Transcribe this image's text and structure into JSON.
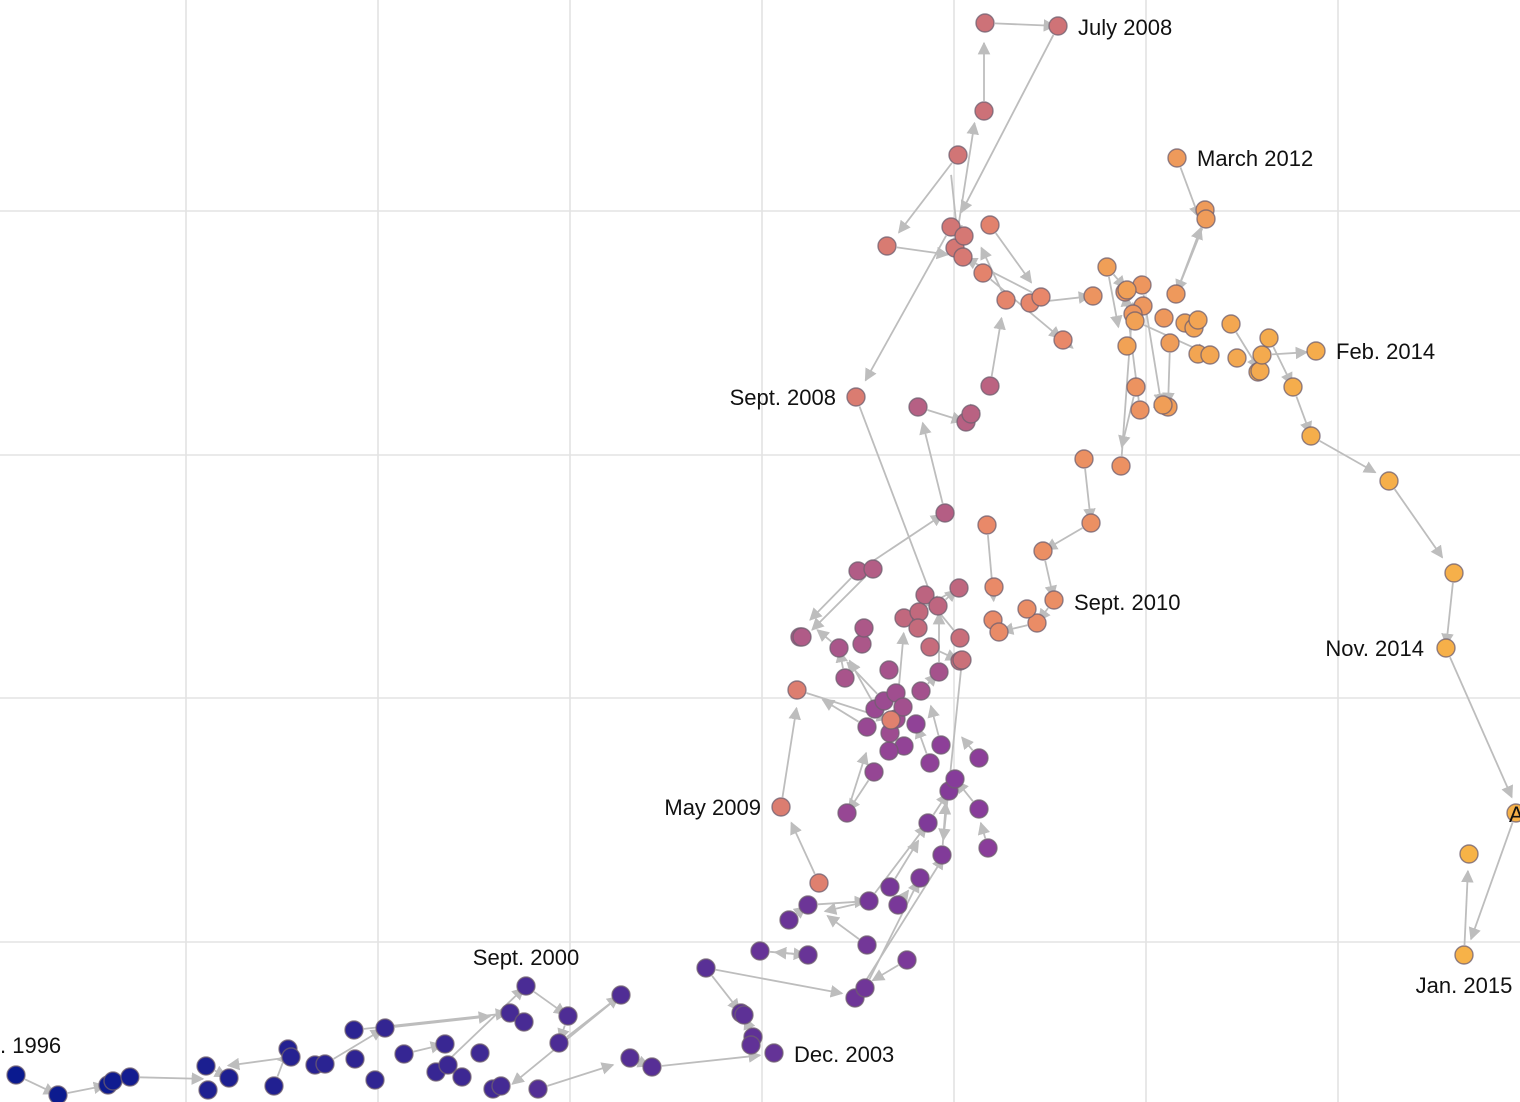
{
  "chart_data": {
    "type": "scatter",
    "title": "",
    "xlabel": "",
    "ylabel": "",
    "grid": true,
    "connected": "arrows in time order",
    "color_scale": {
      "start": "#0a1a8f",
      "middle": "#8a3d9a",
      "late": "#e8876a",
      "end": "#f7b347"
    },
    "annotations": [
      {
        "text": "July 2008"
      },
      {
        "text": "March 2012"
      },
      {
        "text": "Feb. 2014"
      },
      {
        "text": "Sept. 2008"
      },
      {
        "text": "Sept. 2010"
      },
      {
        "text": "Nov. 2014"
      },
      {
        "text": "May 2009"
      },
      {
        "text": "Sept. 2000"
      },
      {
        "text": "Jan. 2015"
      },
      {
        "text": ". 1996"
      },
      {
        "text": "Dec. 2003"
      },
      {
        "text": "A"
      }
    ],
    "points": [
      [
        16,
        1075,
        0.0
      ],
      [
        58,
        1095,
        0.01
      ],
      [
        108,
        1085,
        0.02
      ],
      [
        113,
        1081,
        0.03
      ],
      [
        130,
        1077,
        0.04
      ],
      [
        206,
        1066,
        0.08
      ],
      [
        229,
        1078,
        0.09
      ],
      [
        208,
        1090,
        0.1
      ],
      [
        274,
        1086,
        0.11
      ],
      [
        288,
        1049,
        0.12
      ],
      [
        291,
        1057,
        0.13
      ],
      [
        315,
        1065,
        0.14
      ],
      [
        325,
        1064,
        0.15
      ],
      [
        354,
        1030,
        0.16
      ],
      [
        355,
        1059,
        0.17
      ],
      [
        375,
        1080,
        0.18
      ],
      [
        385,
        1028,
        0.19
      ],
      [
        404,
        1054,
        0.2
      ],
      [
        436,
        1072,
        0.21
      ],
      [
        445,
        1044,
        0.22
      ],
      [
        448,
        1065,
        0.23
      ],
      [
        462,
        1077,
        0.24
      ],
      [
        480,
        1053,
        0.25
      ],
      [
        493,
        1089,
        0.26
      ],
      [
        501,
        1086,
        0.27
      ],
      [
        510,
        1013,
        0.28
      ],
      [
        524,
        1022,
        0.29
      ],
      [
        526,
        986,
        0.3
      ],
      [
        559,
        1043,
        0.31
      ],
      [
        568,
        1016,
        0.32
      ],
      [
        621,
        995,
        0.33
      ],
      [
        538,
        1089,
        0.34
      ],
      [
        630,
        1058,
        0.35
      ],
      [
        652,
        1067,
        0.36
      ],
      [
        706,
        968,
        0.37
      ],
      [
        741,
        1013,
        0.38
      ],
      [
        744,
        1015,
        0.39
      ],
      [
        753,
        1037,
        0.4
      ],
      [
        751,
        1045,
        0.41
      ],
      [
        774,
        1053,
        0.42
      ],
      [
        760,
        951,
        0.43
      ],
      [
        808,
        955,
        0.44
      ],
      [
        789,
        920,
        0.45
      ],
      [
        808,
        905,
        0.46
      ],
      [
        855,
        998,
        0.47
      ],
      [
        865,
        988,
        0.48
      ],
      [
        867,
        945,
        0.49
      ],
      [
        869,
        901,
        0.5
      ],
      [
        890,
        887,
        0.51
      ],
      [
        898,
        905,
        0.52
      ],
      [
        907,
        960,
        0.53
      ],
      [
        920,
        878,
        0.54
      ],
      [
        928,
        823,
        0.55
      ],
      [
        942,
        855,
        0.56
      ],
      [
        949,
        791,
        0.57
      ],
      [
        955,
        779,
        0.58
      ],
      [
        979,
        809,
        0.59
      ],
      [
        988,
        848,
        0.6
      ],
      [
        979,
        758,
        0.61
      ],
      [
        941,
        745,
        0.62
      ],
      [
        930,
        763,
        0.63
      ],
      [
        916,
        724,
        0.64
      ],
      [
        904,
        746,
        0.65
      ],
      [
        889,
        751,
        0.66
      ],
      [
        874,
        772,
        0.67
      ],
      [
        847,
        813,
        0.68
      ],
      [
        867,
        727,
        0.69
      ],
      [
        875,
        709,
        0.7
      ],
      [
        884,
        701,
        0.71
      ],
      [
        890,
        733,
        0.72
      ],
      [
        896,
        719,
        0.73
      ],
      [
        896,
        693,
        0.74
      ],
      [
        903,
        707,
        0.75
      ],
      [
        921,
        691,
        0.76
      ],
      [
        939,
        672,
        0.77
      ],
      [
        889,
        670,
        0.78
      ],
      [
        845,
        678,
        0.79
      ],
      [
        839,
        648,
        0.8
      ],
      [
        862,
        644,
        0.81
      ],
      [
        864,
        628,
        0.82
      ],
      [
        800,
        637,
        0.83
      ],
      [
        802,
        637,
        0.84
      ],
      [
        858,
        571,
        0.85
      ],
      [
        873,
        569,
        0.86
      ],
      [
        945,
        513,
        0.87
      ],
      [
        918,
        407,
        0.88
      ],
      [
        966,
        422,
        0.89
      ],
      [
        971,
        414,
        0.9
      ],
      [
        990,
        386,
        0.91
      ],
      [
        925,
        595,
        0.92
      ],
      [
        938,
        606,
        0.93
      ],
      [
        959,
        588,
        0.94
      ],
      [
        904,
        618,
        0.95
      ],
      [
        919,
        612,
        0.96
      ],
      [
        918,
        628,
        0.97
      ],
      [
        930,
        647,
        0.98
      ],
      [
        960,
        661,
        0.99
      ],
      [
        960,
        638,
        1.0
      ],
      [
        962,
        660,
        1.01
      ],
      [
        984,
        111,
        1.02
      ],
      [
        985,
        23,
        1.03
      ],
      [
        1058,
        26,
        1.04
      ],
      [
        958,
        155,
        1.05
      ],
      [
        951,
        227,
        1.06
      ],
      [
        955,
        248,
        1.07
      ],
      [
        964,
        236,
        1.08
      ],
      [
        963,
        257,
        1.09
      ],
      [
        887,
        246,
        1.1
      ],
      [
        856,
        397,
        1.11
      ],
      [
        781,
        807,
        1.12
      ],
      [
        797,
        690,
        1.13
      ],
      [
        819,
        883,
        1.14
      ],
      [
        891,
        720,
        1.15
      ],
      [
        990,
        225,
        1.16
      ],
      [
        983,
        273,
        1.17
      ],
      [
        1006,
        300,
        1.18
      ],
      [
        1030,
        303,
        1.19
      ],
      [
        1041,
        297,
        1.2
      ],
      [
        1063,
        340,
        1.21
      ],
      [
        987,
        525,
        1.22
      ],
      [
        994,
        587,
        1.23
      ],
      [
        993,
        620,
        1.24
      ],
      [
        999,
        632,
        1.25
      ],
      [
        1037,
        623,
        1.26
      ],
      [
        1027,
        609,
        1.27
      ],
      [
        1054,
        600,
        1.28
      ],
      [
        1043,
        551,
        1.29
      ],
      [
        1091,
        523,
        1.3
      ],
      [
        1084,
        459,
        1.31
      ],
      [
        1121,
        466,
        1.32
      ],
      [
        1140,
        410,
        1.33
      ],
      [
        1136,
        387,
        1.34
      ],
      [
        1093,
        296,
        1.35
      ],
      [
        1125,
        292,
        1.36
      ],
      [
        1142,
        285,
        1.37
      ],
      [
        1143,
        306,
        1.38
      ],
      [
        1133,
        314,
        1.39
      ],
      [
        1164,
        318,
        1.4
      ],
      [
        1176,
        294,
        1.41
      ],
      [
        1177,
        158,
        1.42
      ],
      [
        1205,
        210,
        1.43
      ],
      [
        1206,
        219,
        1.44
      ],
      [
        1170,
        343,
        1.45
      ],
      [
        1168,
        407,
        1.46
      ],
      [
        1163,
        405,
        1.47
      ],
      [
        1107,
        267,
        1.48
      ],
      [
        1127,
        290,
        1.49
      ],
      [
        1135,
        321,
        1.5
      ],
      [
        1127,
        346,
        1.51
      ],
      [
        1185,
        323,
        1.52
      ],
      [
        1194,
        328,
        1.53
      ],
      [
        1198,
        320,
        1.54
      ],
      [
        1198,
        354,
        1.55
      ],
      [
        1210,
        355,
        1.56
      ],
      [
        1231,
        324,
        1.57
      ],
      [
        1237,
        358,
        1.58
      ],
      [
        1258,
        372,
        1.59
      ],
      [
        1260,
        371,
        1.6
      ],
      [
        1262,
        355,
        1.61
      ],
      [
        1269,
        338,
        1.62
      ],
      [
        1316,
        351,
        1.63
      ],
      [
        1293,
        387,
        1.64
      ],
      [
        1311,
        436,
        1.65
      ],
      [
        1389,
        481,
        1.66
      ],
      [
        1454,
        573,
        1.67
      ],
      [
        1446,
        648,
        1.68
      ],
      [
        1516,
        813,
        1.69
      ],
      [
        1464,
        955,
        1.7
      ],
      [
        1469,
        854,
        1.71
      ]
    ],
    "arrows": [
      [
        16,
        1075,
        58,
        1095
      ],
      [
        58,
        1095,
        108,
        1085
      ],
      [
        130,
        1077,
        206,
        1079
      ],
      [
        206,
        1066,
        229,
        1078
      ],
      [
        274,
        1086,
        288,
        1049
      ],
      [
        291,
        1057,
        225,
        1066
      ],
      [
        325,
        1064,
        385,
        1028
      ],
      [
        385,
        1028,
        493,
        1016
      ],
      [
        354,
        1030,
        510,
        1013
      ],
      [
        404,
        1054,
        445,
        1044
      ],
      [
        436,
        1072,
        526,
        986
      ],
      [
        526,
        986,
        568,
        1016
      ],
      [
        568,
        1016,
        559,
        1043
      ],
      [
        559,
        1043,
        621,
        995
      ],
      [
        621,
        995,
        510,
        1086
      ],
      [
        538,
        1089,
        616,
        1064
      ],
      [
        630,
        1058,
        652,
        1067
      ],
      [
        652,
        1067,
        763,
        1055
      ],
      [
        706,
        968,
        845,
        994
      ],
      [
        706,
        968,
        741,
        1013
      ],
      [
        753,
        1037,
        744,
        1015
      ],
      [
        760,
        951,
        808,
        955
      ],
      [
        808,
        955,
        772,
        952
      ],
      [
        789,
        920,
        808,
        905
      ],
      [
        808,
        905,
        869,
        901
      ],
      [
        869,
        901,
        822,
        912
      ],
      [
        867,
        945,
        825,
        914
      ],
      [
        855,
        998,
        945,
        855
      ],
      [
        865,
        988,
        920,
        878
      ],
      [
        907,
        960,
        870,
        982
      ],
      [
        898,
        905,
        910,
        888
      ],
      [
        890,
        887,
        920,
        838
      ],
      [
        869,
        901,
        928,
        823
      ],
      [
        928,
        823,
        949,
        791
      ],
      [
        949,
        791,
        955,
        779
      ],
      [
        942,
        855,
        946,
        800
      ],
      [
        979,
        809,
        955,
        779
      ],
      [
        988,
        848,
        980,
        820
      ],
      [
        979,
        758,
        960,
        735
      ],
      [
        941,
        745,
        930,
        703
      ],
      [
        930,
        763,
        916,
        724
      ],
      [
        904,
        746,
        889,
        751
      ],
      [
        874,
        772,
        847,
        813
      ],
      [
        847,
        813,
        867,
        750
      ],
      [
        867,
        727,
        820,
        698
      ],
      [
        884,
        701,
        845,
        660
      ],
      [
        890,
        733,
        848,
        658
      ],
      [
        896,
        719,
        904,
        630
      ],
      [
        921,
        691,
        939,
        672
      ],
      [
        939,
        672,
        939,
        610
      ],
      [
        845,
        678,
        839,
        648
      ],
      [
        839,
        648,
        815,
        628
      ],
      [
        858,
        571,
        808,
        622
      ],
      [
        873,
        569,
        810,
        632
      ],
      [
        858,
        571,
        945,
        513
      ],
      [
        945,
        513,
        922,
        420
      ],
      [
        918,
        407,
        966,
        422
      ],
      [
        966,
        422,
        971,
        414
      ],
      [
        990,
        386,
        1002,
        315
      ],
      [
        960,
        638,
        925,
        595
      ],
      [
        938,
        606,
        959,
        588
      ],
      [
        959,
        588,
        904,
        618
      ],
      [
        919,
        612,
        918,
        628
      ],
      [
        930,
        647,
        960,
        661
      ],
      [
        962,
        660,
        943,
        843
      ],
      [
        984,
        111,
        984,
        40
      ],
      [
        985,
        23,
        1058,
        26
      ],
      [
        1058,
        26,
        960,
        215
      ],
      [
        958,
        155,
        897,
        235
      ],
      [
        950,
        165,
        958,
        240
      ],
      [
        955,
        248,
        975,
        120
      ],
      [
        887,
        246,
        951,
        255
      ],
      [
        951,
        227,
        864,
        383
      ],
      [
        856,
        397,
        937,
        611
      ],
      [
        819,
        883,
        790,
        820
      ],
      [
        781,
        807,
        797,
        705
      ],
      [
        797,
        690,
        891,
        720
      ],
      [
        990,
        225,
        1033,
        285
      ],
      [
        983,
        273,
        1063,
        340
      ],
      [
        1063,
        340,
        1075,
        350
      ],
      [
        1006,
        300,
        980,
        245
      ],
      [
        1030,
        303,
        1093,
        296
      ],
      [
        1041,
        297,
        963,
        257
      ],
      [
        987,
        525,
        994,
        604
      ],
      [
        1054,
        600,
        1037,
        623
      ],
      [
        1037,
        623,
        999,
        632
      ],
      [
        1043,
        551,
        1054,
        600
      ],
      [
        1091,
        523,
        1043,
        551
      ],
      [
        1084,
        459,
        1091,
        523
      ],
      [
        1121,
        466,
        1133,
        300
      ],
      [
        1140,
        410,
        1125,
        292
      ],
      [
        1136,
        387,
        1121,
        450
      ],
      [
        1142,
        285,
        1162,
        408
      ],
      [
        1177,
        158,
        1200,
        220
      ],
      [
        1206,
        219,
        1176,
        294
      ],
      [
        1176,
        294,
        1202,
        225
      ],
      [
        1168,
        407,
        1163,
        405
      ],
      [
        1107,
        267,
        1127,
        290
      ],
      [
        1107,
        267,
        1119,
        330
      ],
      [
        1135,
        321,
        1210,
        355
      ],
      [
        1185,
        323,
        1198,
        320
      ],
      [
        1170,
        343,
        1168,
        407
      ],
      [
        1231,
        324,
        1260,
        371
      ],
      [
        1262,
        355,
        1310,
        352
      ],
      [
        1269,
        338,
        1293,
        387
      ],
      [
        1293,
        387,
        1311,
        436
      ],
      [
        1311,
        436,
        1378,
        474
      ],
      [
        1389,
        481,
        1444,
        560
      ],
      [
        1454,
        573,
        1446,
        648
      ],
      [
        1446,
        648,
        1513,
        800
      ],
      [
        1516,
        813,
        1470,
        942
      ],
      [
        1464,
        955,
        1468,
        868
      ]
    ],
    "grid_x": [
      186,
      378,
      570,
      762,
      954,
      1146,
      1338
    ],
    "grid_y": [
      211,
      455,
      698,
      942
    ]
  }
}
